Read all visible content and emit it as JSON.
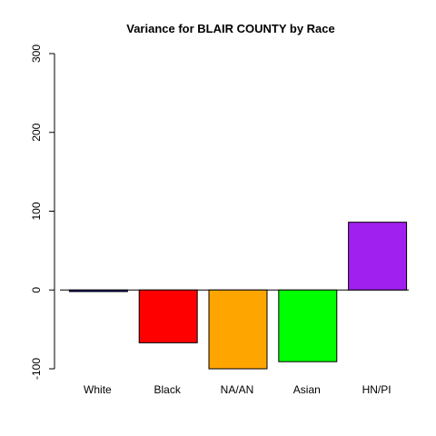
{
  "chart_data": {
    "type": "bar",
    "title": "Variance for BLAIR COUNTY by Race",
    "xlabel": "",
    "ylabel": "",
    "categories": [
      "White",
      "Black",
      "NA/AN",
      "Asian",
      "HN/PI"
    ],
    "values": [
      -2,
      -67,
      -100,
      -91,
      86
    ],
    "colors": [
      "#00008B",
      "#FF0000",
      "#FFA500",
      "#00FF00",
      "#A020F0"
    ],
    "ylim": [
      -100,
      300
    ],
    "yticks": [
      -100,
      0,
      100,
      200,
      300
    ],
    "zero_line": true,
    "grid": false,
    "legend": "none"
  }
}
